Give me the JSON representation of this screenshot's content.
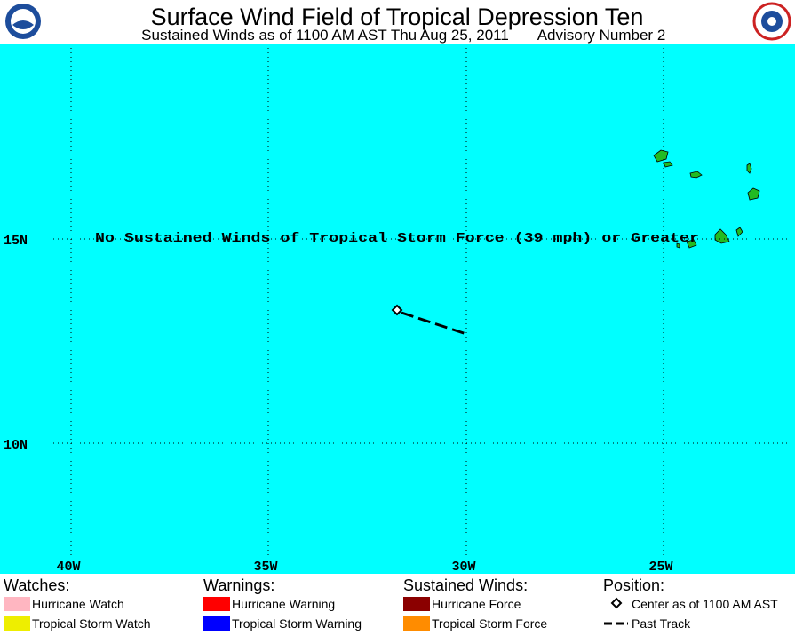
{
  "header": {
    "title": "Surface Wind Field of Tropical Depression Ten",
    "subtitle": "Sustained Winds as of 1100 AM AST Thu Aug 25, 2011",
    "advisory": "Advisory Number 2"
  },
  "map": {
    "longitude_labels": [
      "40W",
      "35W",
      "30W",
      "25W"
    ],
    "latitude_labels": [
      "15N",
      "10N"
    ],
    "message": "No Sustained Winds of Tropical Storm Force (39 mph) or Greater"
  },
  "legend": {
    "watches": {
      "title": "Watches:",
      "items": [
        "Hurricane Watch",
        "Tropical Storm Watch"
      ]
    },
    "warnings": {
      "title": "Warnings:",
      "items": [
        "Hurricane Warning",
        "Tropical Storm Warning"
      ]
    },
    "winds": {
      "title": "Sustained Winds:",
      "items": [
        "Hurricane Force",
        "Tropical Storm Force"
      ]
    },
    "position": {
      "title": "Position:",
      "items": [
        "Center as of 1100 AM AST",
        "Past Track"
      ]
    }
  }
}
